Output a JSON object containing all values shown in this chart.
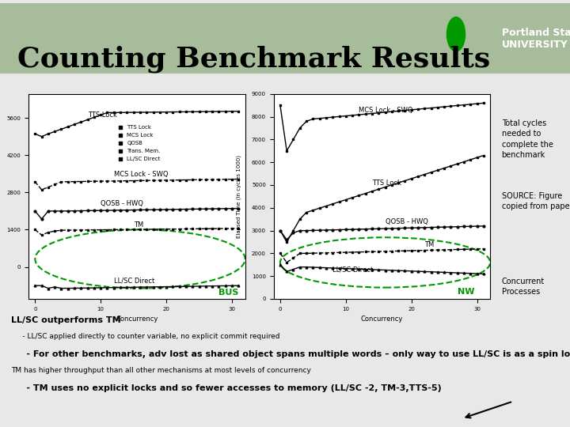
{
  "title": "Counting Benchmark Results",
  "bg_top_color": "#7a9e7e",
  "bg_main_color": "#ffffff",
  "header_text": "Total cycles\nneeded to\ncomplete the\nbenchmark",
  "source_text": "SOURCE: Figure\ncopied from paper",
  "concurrent_text": "Concurrent\nProcesses",
  "bus_label": "BUS",
  "nw_label": "NW",
  "bottom_text_lines": [
    "LL/SC outperforms TM",
    "     - LL/SC applied directly to counter variable, no explicit commit required",
    "     - For other benchmarks, adv lost as shared object spans multiple words – only way to use LL/SC is as a spin lock",
    "TM has higher throughput than all other mechanisms at most levels of concurrency",
    "     - TM uses no explicit locks and so fewer accesses to memory (LL/SC -2, TM-3,TTS-5)"
  ],
  "psu_logo_color": "#006633",
  "psu_text": "Portland State\nUNIVERSITY"
}
